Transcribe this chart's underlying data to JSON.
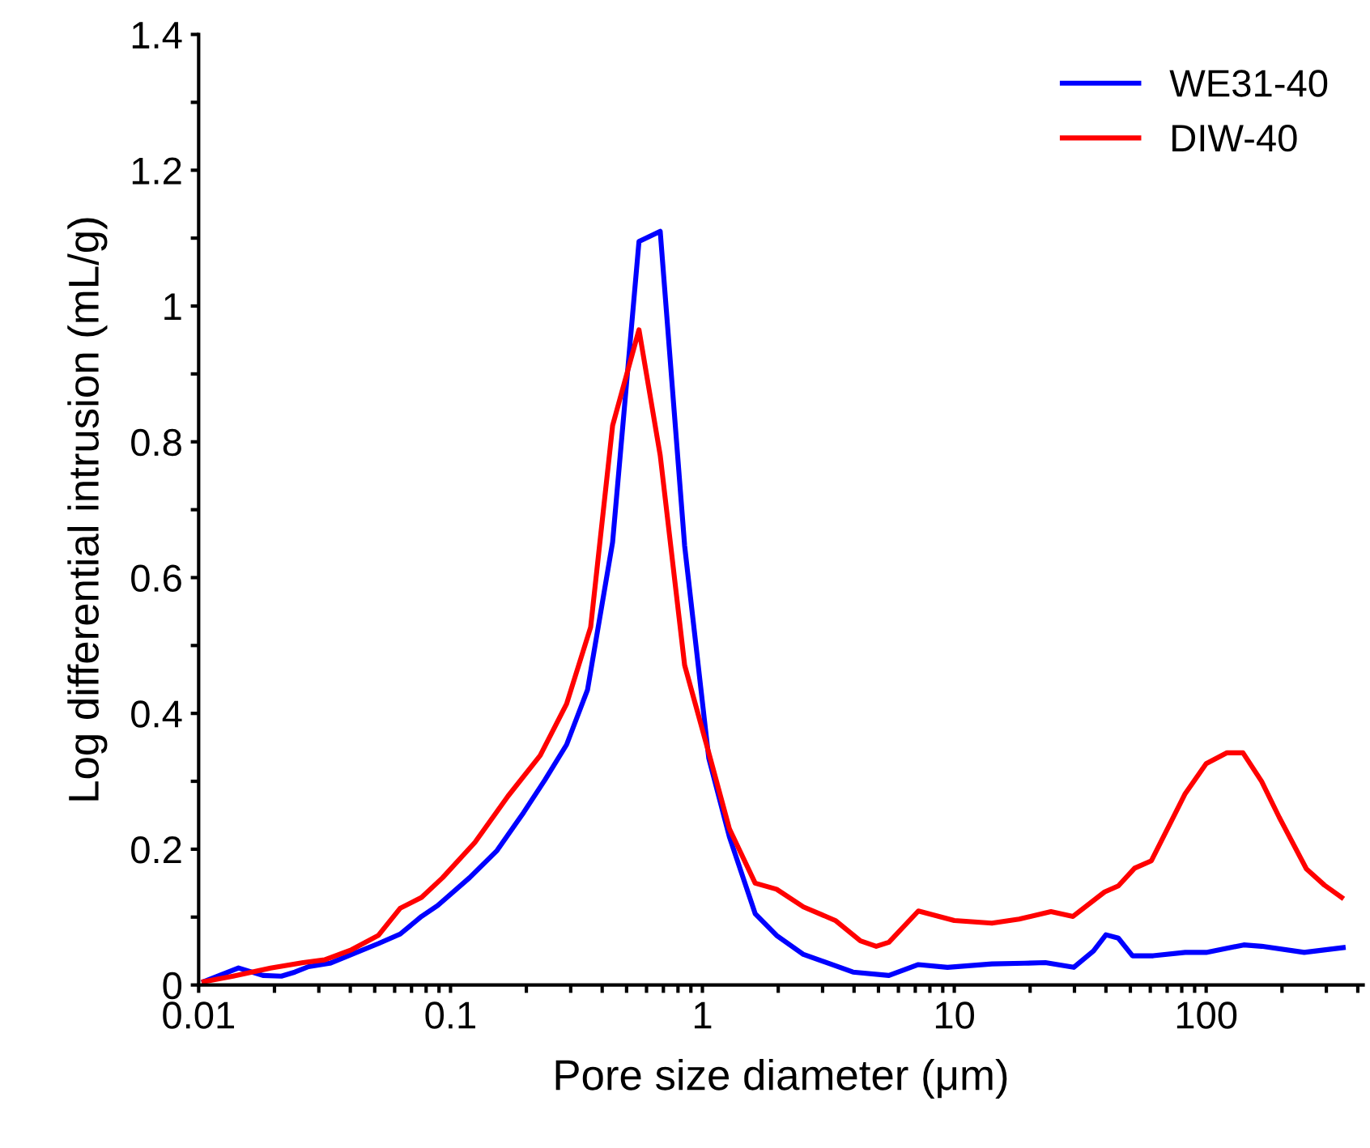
{
  "chart_data": {
    "type": "line",
    "xlabel": "Pore size diameter (μm)",
    "ylabel": "Log differential intrusion (mL/g)",
    "log": "x",
    "grid": false,
    "legend": "top right",
    "line_style": "solid",
    "marker": "none",
    "xlim": [
      0.01,
      420
    ],
    "ylim": [
      0,
      1.4
    ],
    "xticks": [
      {
        "value": 0.01,
        "label": "0.01"
      },
      {
        "value": 0.02,
        "label": null
      },
      {
        "value": 0.03,
        "label": null
      },
      {
        "value": 0.04,
        "label": null
      },
      {
        "value": 0.05,
        "label": null
      },
      {
        "value": 0.06,
        "label": null
      },
      {
        "value": 0.07,
        "label": null
      },
      {
        "value": 0.08,
        "label": null
      },
      {
        "value": 0.09,
        "label": null
      },
      {
        "value": 0.1,
        "label": "0.1"
      },
      {
        "value": 0.2,
        "label": null
      },
      {
        "value": 0.3,
        "label": null
      },
      {
        "value": 0.4,
        "label": null
      },
      {
        "value": 0.5,
        "label": null
      },
      {
        "value": 0.6,
        "label": null
      },
      {
        "value": 0.7,
        "label": null
      },
      {
        "value": 0.8,
        "label": null
      },
      {
        "value": 0.9,
        "label": null
      },
      1,
      {
        "value": 2,
        "label": null
      },
      {
        "value": 3,
        "label": null
      },
      {
        "value": 4,
        "label": null
      },
      {
        "value": 5,
        "label": null
      },
      {
        "value": 6,
        "label": null
      },
      {
        "value": 7,
        "label": null
      },
      {
        "value": 8,
        "label": null
      },
      {
        "value": 9,
        "label": null
      },
      10,
      {
        "value": 20,
        "label": null
      },
      {
        "value": 30,
        "label": null
      },
      {
        "value": 40,
        "label": null
      },
      {
        "value": 50,
        "label": null
      },
      {
        "value": 60,
        "label": null
      },
      {
        "value": 70,
        "label": null
      },
      {
        "value": 80,
        "label": null
      },
      {
        "value": 90,
        "label": null
      },
      100,
      {
        "value": 200,
        "label": null
      },
      {
        "value": 300,
        "label": null
      },
      {
        "value": 400,
        "label": null
      }
    ],
    "yticks": [
      0,
      {
        "value": 0.1,
        "label": null
      },
      0.2,
      {
        "value": 0.3,
        "label": null
      },
      0.4,
      {
        "value": 0.5,
        "label": null
      },
      0.6,
      {
        "value": 0.7,
        "label": null
      },
      0.8,
      {
        "value": 0.9,
        "label": null
      },
      1,
      {
        "value": 1.1,
        "label": null
      },
      1.2,
      {
        "value": 1.3,
        "label": null
      },
      1.4
    ],
    "series": [
      {
        "name": "WE31-40",
        "color": "#0000ff",
        "x": [
          0.0105,
          0.0144,
          0.018,
          0.0213,
          0.0241,
          0.0273,
          0.0332,
          0.0405,
          0.0517,
          0.0631,
          0.0767,
          0.0889,
          0.119,
          0.153,
          0.195,
          0.237,
          0.289,
          0.35,
          0.44,
          0.56,
          0.68,
          0.85,
          1.06,
          1.28,
          1.62,
          1.97,
          2.52,
          3.22,
          3.96,
          5.5,
          7.2,
          9.4,
          14.1,
          19,
          23,
          29.8,
          35.7,
          40,
          44.8,
          51,
          61.6,
          82.6,
          100,
          141,
          166,
          245,
          350
        ],
        "values": [
          0.005,
          0.025,
          0.014,
          0.013,
          0.019,
          0.027,
          0.032,
          0.045,
          0.061,
          0.075,
          0.101,
          0.117,
          0.158,
          0.198,
          0.254,
          0.302,
          0.354,
          0.435,
          0.652,
          1.095,
          1.11,
          0.647,
          0.334,
          0.218,
          0.105,
          0.073,
          0.045,
          0.031,
          0.019,
          0.014,
          0.03,
          0.026,
          0.031,
          0.032,
          0.033,
          0.026,
          0.05,
          0.074,
          0.069,
          0.043,
          0.043,
          0.048,
          0.048,
          0.059,
          0.057,
          0.048,
          0.055
        ]
      },
      {
        "name": "DIW-40",
        "color": "#ff0000",
        "x": [
          0.0105,
          0.0137,
          0.0193,
          0.026,
          0.0316,
          0.0405,
          0.0517,
          0.0631,
          0.0767,
          0.093,
          0.125,
          0.169,
          0.227,
          0.289,
          0.36,
          0.44,
          0.56,
          0.68,
          0.85,
          1.06,
          1.28,
          1.62,
          1.97,
          2.52,
          3.37,
          4.24,
          4.9,
          5.5,
          7.2,
          10,
          14.1,
          18.1,
          24.2,
          29.6,
          39.5,
          44.8,
          52,
          60.6,
          82.6,
          100,
          121,
          140,
          166,
          195,
          250,
          295,
          345
        ],
        "values": [
          0.005,
          0.013,
          0.025,
          0.033,
          0.037,
          0.052,
          0.073,
          0.113,
          0.129,
          0.158,
          0.21,
          0.278,
          0.338,
          0.414,
          0.527,
          0.824,
          0.965,
          0.78,
          0.471,
          0.342,
          0.23,
          0.15,
          0.141,
          0.115,
          0.095,
          0.065,
          0.057,
          0.063,
          0.109,
          0.095,
          0.091,
          0.097,
          0.108,
          0.101,
          0.137,
          0.146,
          0.172,
          0.183,
          0.282,
          0.326,
          0.342,
          0.342,
          0.3,
          0.247,
          0.171,
          0.147,
          0.129
        ]
      }
    ]
  }
}
